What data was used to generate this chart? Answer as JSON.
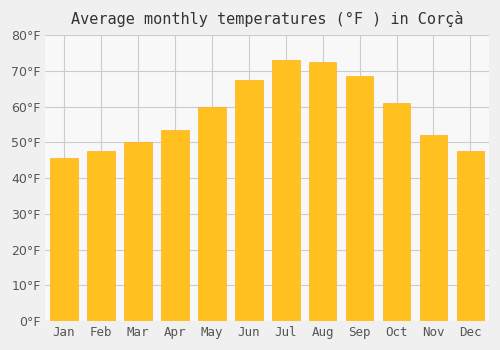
{
  "title": "Average monthly temperatures (°F ) in Corçà",
  "months": [
    "Jan",
    "Feb",
    "Mar",
    "Apr",
    "May",
    "Jun",
    "Jul",
    "Aug",
    "Sep",
    "Oct",
    "Nov",
    "Dec"
  ],
  "values": [
    45.5,
    47.5,
    50.0,
    53.5,
    60.0,
    67.5,
    73.0,
    72.5,
    68.5,
    61.0,
    52.0,
    47.5
  ],
  "bar_color_top": "#FFC020",
  "bar_color_bottom": "#FFB020",
  "background_color": "#f0f0f0",
  "plot_bg_color": "#f8f8f8",
  "ylim": [
    0,
    80
  ],
  "yticks": [
    0,
    10,
    20,
    30,
    40,
    50,
    60,
    70,
    80
  ],
  "grid_color": "#cccccc",
  "title_fontsize": 11,
  "tick_fontsize": 9,
  "bar_edge_color": "#FFA500"
}
